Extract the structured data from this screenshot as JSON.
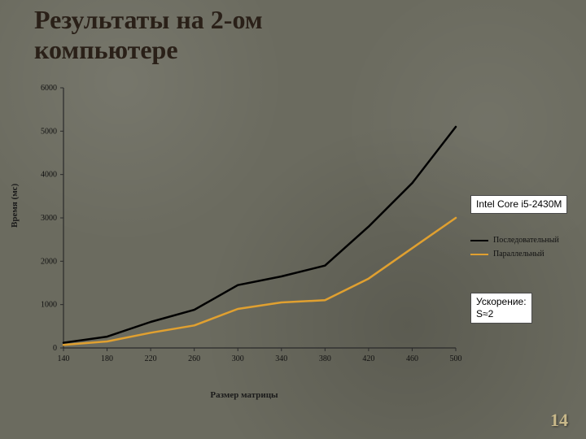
{
  "title_line1": "Результаты на 2-ом",
  "title_line2": "компьютере",
  "page_number": "14",
  "info_cpu": "Intel Core i5-2430M",
  "info_speedup_l1": "Ускорение:",
  "info_speedup_l2": "S≈2",
  "chart": {
    "type": "line",
    "xlabel": "Размер матрицы",
    "ylabel": "Время (мс)",
    "x_ticks": [
      140,
      180,
      220,
      260,
      300,
      340,
      380,
      420,
      460,
      500
    ],
    "y_ticks": [
      0,
      1000,
      2000,
      3000,
      4000,
      5000,
      6000
    ],
    "xlim": [
      140,
      500
    ],
    "ylim": [
      0,
      6000
    ],
    "background_color": "transparent",
    "axis_color": "#2a2a2a",
    "tick_font_size": 10,
    "label_font_size": 11,
    "series": [
      {
        "name": "Последовательный",
        "color": "#000000",
        "line_width": 2.5,
        "x": [
          140,
          180,
          220,
          260,
          300,
          340,
          380,
          420,
          460,
          500
        ],
        "y": [
          120,
          260,
          600,
          880,
          1450,
          1650,
          1900,
          2800,
          3800,
          5100
        ]
      },
      {
        "name": "Параллельный",
        "color": "#e0a030",
        "line_width": 2.5,
        "x": [
          140,
          180,
          220,
          260,
          300,
          340,
          380,
          420,
          460,
          500
        ],
        "y": [
          70,
          150,
          350,
          520,
          900,
          1050,
          1100,
          1600,
          2300,
          3000
        ]
      }
    ],
    "legend": {
      "items": [
        {
          "label": "Последовательный",
          "color": "#000000"
        },
        {
          "label": "Параллельный",
          "color": "#e0a030"
        }
      ]
    }
  }
}
